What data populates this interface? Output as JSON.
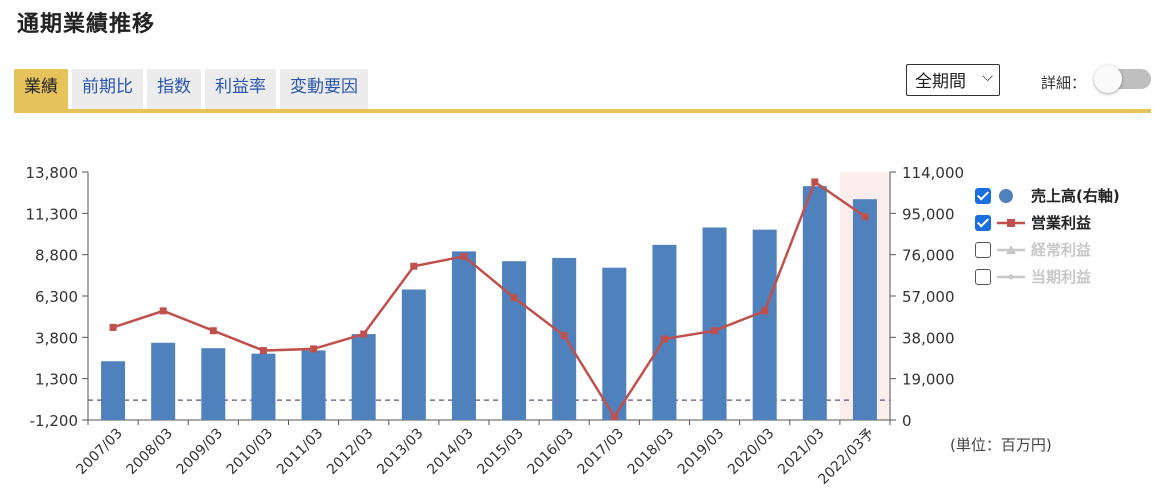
{
  "header": {
    "title": "通期業績推移"
  },
  "tabs": [
    {
      "label": "業績",
      "active": true
    },
    {
      "label": "前期比",
      "active": false
    },
    {
      "label": "指数",
      "active": false
    },
    {
      "label": "利益率",
      "active": false
    },
    {
      "label": "変動要因",
      "active": false
    }
  ],
  "controls": {
    "period_select": "全期間",
    "detail_label": "詳細：",
    "detail_toggle_on": false
  },
  "legend": [
    {
      "label": "売上高(右軸)",
      "checked": true,
      "color": "#4f81bd",
      "symbol": "circle-icon"
    },
    {
      "label": "営業利益",
      "checked": true,
      "color": "#c0504d",
      "symbol": "line-square-icon"
    },
    {
      "label": "経常利益",
      "checked": false,
      "color": "#c8c8c8",
      "symbol": "line-triangle-icon"
    },
    {
      "label": "当期利益",
      "checked": false,
      "color": "#c8c8c8",
      "symbol": "line-icon"
    }
  ],
  "unit_label": "(単位：百万円)",
  "colors": {
    "accent": "#e6c25a",
    "bar": "#4f81bd",
    "line": "#c0504d",
    "forecast_band": "#fdeeee",
    "zero_line": "#6b4c7a"
  },
  "chart_data": {
    "type": "bar",
    "categories": [
      "2007/03",
      "2008/03",
      "2009/03",
      "2010/03",
      "2011/03",
      "2012/03",
      "2013/03",
      "2014/03",
      "2015/03",
      "2016/03",
      "2017/03",
      "2018/03",
      "2019/03",
      "2020/03",
      "2021/03",
      "2022/03予"
    ],
    "forecast_category": "2022/03予",
    "y_left": {
      "ticks": [
        "13,800",
        "11,300",
        "8,800",
        "6,300",
        "3,800",
        "1,300",
        "-1,200"
      ],
      "min": -1200,
      "max": 13800
    },
    "y_right": {
      "ticks": [
        "114,000",
        "95,000",
        "76,000",
        "57,000",
        "38,000",
        "19,000",
        "0"
      ],
      "min": 0,
      "max": 114000
    },
    "series": [
      {
        "name": "売上高(右軸)",
        "type": "bar",
        "axis": "right",
        "values": [
          27000,
          35500,
          33000,
          30500,
          32000,
          39500,
          60000,
          77500,
          73000,
          74500,
          70000,
          80500,
          88500,
          87500,
          107500,
          101500
        ]
      },
      {
        "name": "営業利益",
        "type": "line",
        "axis": "left",
        "values": [
          4400,
          5400,
          4200,
          3000,
          3100,
          4000,
          8100,
          8700,
          6200,
          3900,
          -1000,
          3700,
          4200,
          5400,
          13200,
          11100
        ]
      }
    ],
    "grid": false,
    "legend_position": "right"
  }
}
